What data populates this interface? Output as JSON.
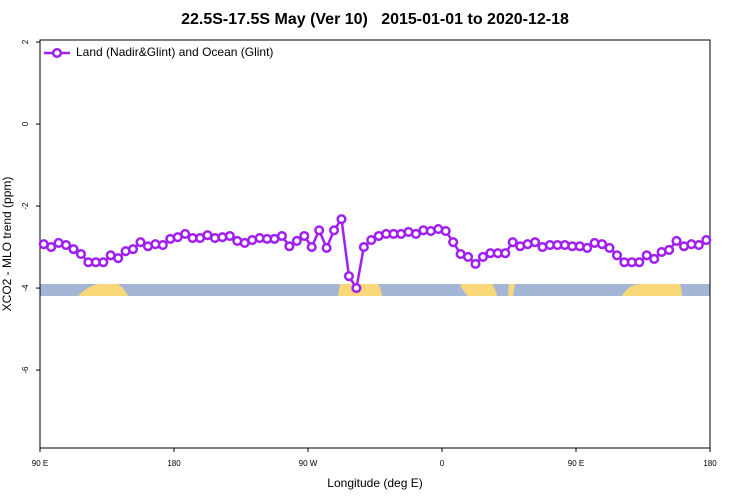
{
  "chart_data": {
    "type": "line",
    "title": "22.5S-17.5S May (Ver 10)   2015-01-01 to 2020-12-18",
    "xlabel": "Longitude (deg E)",
    "ylabel": "XCO2 - MLO trend (ppm)",
    "xlim": [
      90,
      540
    ],
    "xticks": [
      {
        "value": 90,
        "label": "90 E"
      },
      180,
      {
        "value": 270,
        "label": "90 W"
      },
      {
        "value": 360,
        "label": "0"
      },
      {
        "value": 450,
        "label": "90 E"
      },
      {
        "value": 540,
        "label": "180"
      }
    ],
    "ylim": [
      -7.9,
      2.05
    ],
    "yticks": [
      2,
      0,
      -2,
      -4,
      -6
    ],
    "legend": "top-left",
    "x": [
      92.5,
      97.5,
      102.5,
      107.5,
      112.5,
      117.5,
      122.5,
      127.5,
      132.5,
      137.5,
      142.5,
      147.5,
      152.5,
      157.5,
      162.5,
      167.5,
      172.5,
      177.5,
      182.5,
      187.5,
      192.5,
      197.5,
      202.5,
      207.5,
      212.5,
      217.5,
      222.5,
      227.5,
      232.5,
      237.5,
      242.5,
      247.5,
      252.5,
      257.5,
      262.5,
      267.5,
      272.5,
      277.5,
      282.5,
      287.5,
      292.5,
      297.5,
      302.5,
      307.5,
      312.5,
      317.5,
      322.5,
      327.5,
      332.5,
      337.5,
      342.5,
      347.5,
      352.5,
      357.5,
      362.5,
      367.5,
      372.5,
      377.5,
      382.5,
      387.5,
      392.5,
      397.5,
      402.5,
      407.5,
      412.5,
      417.5,
      422.5,
      427.5,
      432.5,
      437.5,
      442.5,
      447.5,
      452.5,
      457.5,
      462.5,
      467.5,
      472.5,
      477.5,
      482.5,
      487.5,
      492.5,
      497.5,
      502.5,
      507.5,
      512.5,
      517.5,
      522.5,
      527.5,
      532.5,
      537.5
    ],
    "series": [
      {
        "name": "Land (Nadir&Glint) and Ocean (Glint)",
        "color": "#a020f0",
        "values": [
          -2.93,
          -3.0,
          -2.9,
          -2.95,
          -3.05,
          -3.17,
          -3.37,
          -3.37,
          -3.37,
          -3.2,
          -3.27,
          -3.1,
          -3.05,
          -2.88,
          -2.98,
          -2.93,
          -2.95,
          -2.8,
          -2.76,
          -2.68,
          -2.78,
          -2.78,
          -2.71,
          -2.78,
          -2.76,
          -2.73,
          -2.85,
          -2.9,
          -2.83,
          -2.78,
          -2.8,
          -2.8,
          -2.73,
          -2.98,
          -2.85,
          -2.73,
          -3.0,
          -2.59,
          -3.02,
          -2.59,
          -2.32,
          -3.71,
          -4.0,
          -3.0,
          -2.83,
          -2.73,
          -2.68,
          -2.68,
          -2.68,
          -2.63,
          -2.68,
          -2.59,
          -2.61,
          -2.56,
          -2.61,
          -2.88,
          -3.17,
          -3.24,
          -3.41,
          -3.24,
          -3.15,
          -3.15,
          -3.15,
          -2.88,
          -2.98,
          -2.93,
          -2.88,
          -3.0,
          -2.95,
          -2.95,
          -2.95,
          -2.98,
          -2.98,
          -3.02,
          -2.9,
          -2.93,
          -3.02,
          -3.2,
          -3.37,
          -3.37,
          -3.37,
          -3.2,
          -3.29,
          -3.12,
          -3.07,
          -2.85,
          -2.98,
          -2.93,
          -2.95,
          -2.83
        ]
      }
    ]
  }
}
